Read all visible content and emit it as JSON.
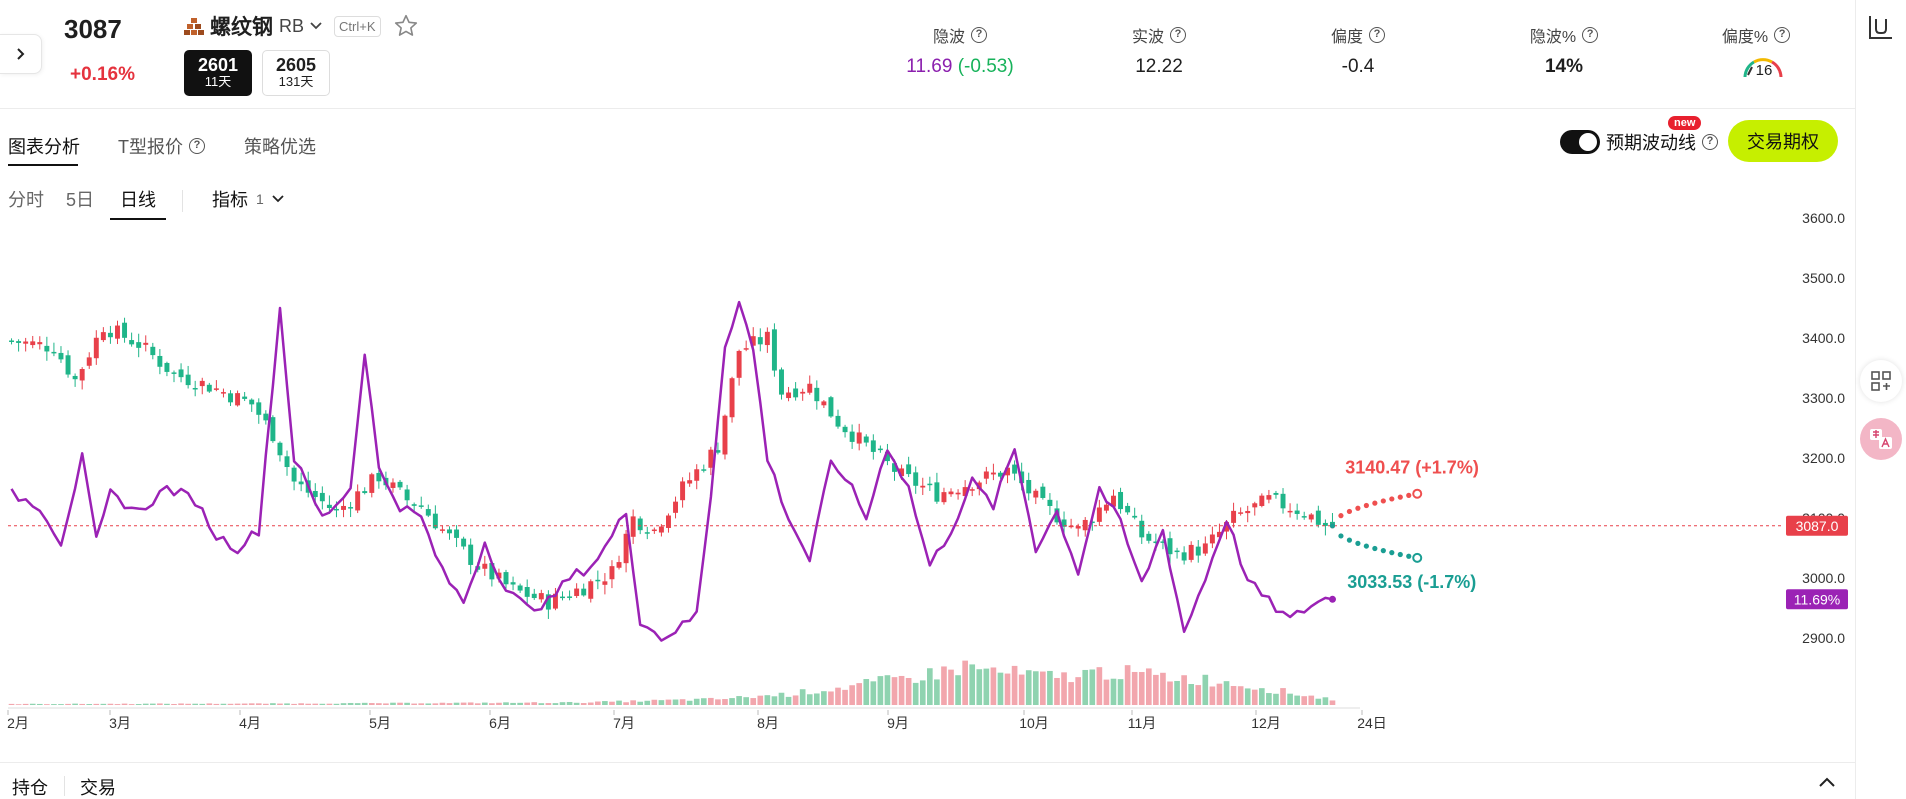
{
  "header": {
    "price": "3087",
    "change": "+0.16%",
    "symbol_name": "螺纹钢",
    "symbol_code": "RB",
    "shortcut": "Ctrl+K",
    "contracts": [
      {
        "code": "2601",
        "days": "11天"
      },
      {
        "code": "2605",
        "days": "131天"
      }
    ]
  },
  "metrics": [
    {
      "label": "隐波",
      "value": "11.69",
      "delta": "(-0.53)",
      "value_color": "#8b1fae",
      "delta_color": "#16b25a"
    },
    {
      "label": "实波",
      "value": "12.22",
      "delta": "",
      "value_color": "#1f1f1f",
      "delta_color": "#1f1f1f"
    },
    {
      "label": "偏度",
      "value": "-0.4",
      "delta": "",
      "value_color": "#1f1f1f",
      "delta_color": "#1f1f1f"
    },
    {
      "label": "隐波%",
      "value": "14%",
      "delta": "",
      "value_color": "#1f1f1f",
      "delta_color": "#1f1f1f"
    },
    {
      "label": "偏度%",
      "value": "16",
      "delta": "",
      "value_color": "#1f1f1f",
      "delta_color": "#1f1f1f"
    }
  ],
  "tabs": [
    "图表分析",
    "T型报价",
    "策略优选"
  ],
  "toolbar": {
    "toggle_label": "预期波动线",
    "new_badge": "new",
    "trade_button": "交易期权"
  },
  "periods": [
    "分时",
    "5日",
    "日线"
  ],
  "indicator": {
    "label": "指标",
    "count": "1"
  },
  "bottom_tabs": [
    "持仓",
    "交易"
  ],
  "colors": {
    "up": "#e8404a",
    "down": "#1fb589",
    "iv": "#9b22b5",
    "up_forecast": "#ef4f4f",
    "down_forecast": "#1a9e93"
  },
  "chart_data": {
    "type": "candlestick",
    "y_ticks": [
      "3600.0",
      "3500.0",
      "3400.0",
      "3300.0",
      "3200.0",
      "3100.0",
      "3000.0",
      "2900.0"
    ],
    "ylim": [
      2880,
      3630
    ],
    "x_ticks": [
      "2月",
      "3月",
      "4月",
      "5月",
      "6月",
      "7月",
      "8月",
      "9月",
      "10月",
      "11月",
      "12月",
      "24日"
    ],
    "current_price": 3087,
    "current_price_label": "3087.0",
    "iv_label": "11.69%",
    "forecast_up": {
      "value": 3140.47,
      "label": "3140.47 (+1.7%)"
    },
    "forecast_down": {
      "value": 3033.53,
      "label": "3033.53 (-1.7%)"
    },
    "close_keypoints": [
      [
        0,
        3395
      ],
      [
        6,
        3385
      ],
      [
        9,
        3330
      ],
      [
        13,
        3420
      ],
      [
        18,
        3390
      ],
      [
        23,
        3340
      ],
      [
        28,
        3320
      ],
      [
        34,
        3290
      ],
      [
        37,
        3240
      ],
      [
        40,
        3160
      ],
      [
        46,
        3110
      ],
      [
        52,
        3170
      ],
      [
        56,
        3130
      ],
      [
        58,
        3120
      ],
      [
        61,
        3080
      ],
      [
        66,
        3020
      ],
      [
        71,
        2980
      ],
      [
        76,
        2960
      ],
      [
        81,
        2985
      ],
      [
        85,
        3010
      ],
      [
        88,
        3100
      ],
      [
        91,
        3080
      ],
      [
        95,
        3150
      ],
      [
        100,
        3220
      ],
      [
        103,
        3380
      ],
      [
        107,
        3400
      ],
      [
        109,
        3310
      ],
      [
        113,
        3320
      ],
      [
        117,
        3260
      ],
      [
        121,
        3220
      ],
      [
        126,
        3170
      ],
      [
        131,
        3140
      ],
      [
        136,
        3160
      ],
      [
        141,
        3180
      ],
      [
        146,
        3120
      ],
      [
        151,
        3080
      ],
      [
        156,
        3140
      ],
      [
        160,
        3070
      ],
      [
        165,
        3040
      ],
      [
        169,
        3050
      ],
      [
        173,
        3100
      ],
      [
        178,
        3130
      ],
      [
        183,
        3110
      ],
      [
        187,
        3080
      ]
    ],
    "iv_keypoints": [
      [
        0,
        3140
      ],
      [
        4,
        3120
      ],
      [
        7,
        3060
      ],
      [
        10,
        3200
      ],
      [
        12,
        3060
      ],
      [
        14,
        3140
      ],
      [
        18,
        3110
      ],
      [
        22,
        3150
      ],
      [
        26,
        3130
      ],
      [
        29,
        3070
      ],
      [
        32,
        3050
      ],
      [
        35,
        3080
      ],
      [
        38,
        3450
      ],
      [
        40,
        3200
      ],
      [
        44,
        3100
      ],
      [
        48,
        3150
      ],
      [
        50,
        3380
      ],
      [
        52,
        3180
      ],
      [
        55,
        3120
      ],
      [
        58,
        3100
      ],
      [
        61,
        3010
      ],
      [
        64,
        2960
      ],
      [
        67,
        3060
      ],
      [
        70,
        2980
      ],
      [
        73,
        2950
      ],
      [
        76,
        2960
      ],
      [
        79,
        3000
      ],
      [
        82,
        3020
      ],
      [
        84,
        3050
      ],
      [
        87,
        3110
      ],
      [
        89,
        2930
      ],
      [
        92,
        2900
      ],
      [
        95,
        2920
      ],
      [
        97,
        2940
      ],
      [
        99,
        3140
      ],
      [
        101,
        3390
      ],
      [
        103,
        3460
      ],
      [
        105,
        3380
      ],
      [
        107,
        3200
      ],
      [
        110,
        3100
      ],
      [
        113,
        3030
      ],
      [
        116,
        3190
      ],
      [
        118,
        3170
      ],
      [
        121,
        3100
      ],
      [
        124,
        3220
      ],
      [
        127,
        3150
      ],
      [
        130,
        3020
      ],
      [
        133,
        3080
      ],
      [
        136,
        3160
      ],
      [
        139,
        3120
      ],
      [
        142,
        3215
      ],
      [
        145,
        3050
      ],
      [
        148,
        3110
      ],
      [
        151,
        3010
      ],
      [
        154,
        3150
      ],
      [
        157,
        3090
      ],
      [
        160,
        2990
      ],
      [
        163,
        3080
      ],
      [
        166,
        2910
      ],
      [
        169,
        3000
      ],
      [
        172,
        3100
      ],
      [
        175,
        2995
      ],
      [
        178,
        2960
      ],
      [
        181,
        2930
      ],
      [
        184,
        2955
      ],
      [
        187,
        2970
      ]
    ],
    "volume_keypoints": [
      [
        0,
        0.02
      ],
      [
        40,
        0.03
      ],
      [
        80,
        0.05
      ],
      [
        100,
        0.12
      ],
      [
        110,
        0.22
      ],
      [
        120,
        0.4
      ],
      [
        130,
        0.62
      ],
      [
        135,
        0.78
      ],
      [
        140,
        0.66
      ],
      [
        148,
        0.56
      ],
      [
        155,
        0.68
      ],
      [
        163,
        0.58
      ],
      [
        170,
        0.5
      ],
      [
        176,
        0.38
      ],
      [
        182,
        0.22
      ],
      [
        187,
        0.12
      ]
    ]
  }
}
